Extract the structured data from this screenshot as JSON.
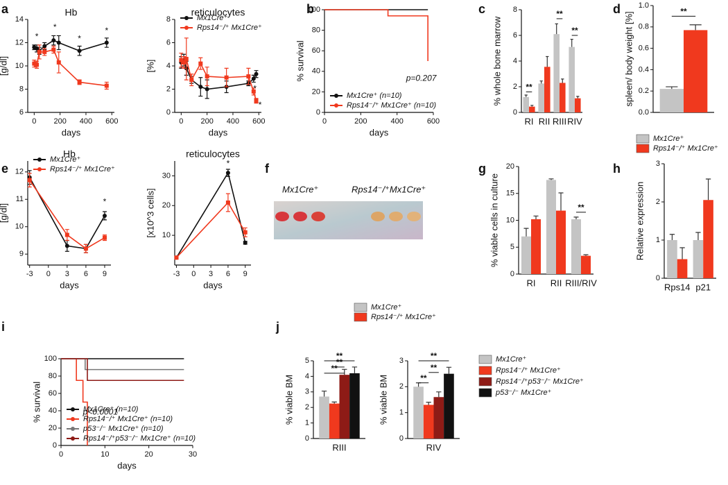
{
  "chart_data": [
    {
      "type": "line",
      "panel": "a",
      "title": "Hb",
      "xlabel": "days",
      "ylabel": "[g/dl]",
      "markers": true,
      "x": [
        0,
        20,
        40,
        80,
        150,
        190,
        350,
        560
      ],
      "series": [
        {
          "color": "#111111",
          "values": [
            11.6,
            11.5,
            11.3,
            11.7,
            12.2,
            12.0,
            11.3,
            12.0
          ],
          "errors": [
            0.2,
            0.3,
            0.3,
            0.3,
            0.4,
            0.6,
            0.4,
            0.4
          ]
        },
        {
          "color": "#f0391e",
          "values": [
            10.2,
            10.1,
            11.2,
            11.2,
            11.4,
            10.3,
            8.6,
            8.3
          ],
          "errors": [
            0.3,
            0.3,
            0.6,
            0.3,
            0.3,
            0.9,
            0.2,
            0.3
          ]
        }
      ],
      "xlim": [
        -50,
        620
      ],
      "xticks": [
        0,
        200,
        400,
        600
      ],
      "ylim": [
        6,
        14
      ],
      "yticks": [
        6,
        8,
        10,
        12,
        14
      ],
      "annotations": [
        {
          "text": "*",
          "x": 20,
          "y": 12.5
        },
        {
          "text": "*",
          "x": 160,
          "y": 13.3
        },
        {
          "text": "*",
          "x": 350,
          "y": 12.3
        },
        {
          "text": "*",
          "x": 560,
          "y": 13.0
        }
      ]
    },
    {
      "type": "line",
      "title": "reticulocytes",
      "xlabel": "days",
      "ylabel": "[%]",
      "markers": true,
      "legend": "top",
      "x": [
        0,
        20,
        40,
        80,
        150,
        200,
        350,
        520,
        560,
        580
      ],
      "series": [
        {
          "name": "Mx1Cre⁺",
          "color": "#111111",
          "values": [
            4.3,
            4.5,
            3.8,
            2.8,
            2.2,
            2.0,
            2.2,
            2.5,
            2.9,
            3.3
          ],
          "errors": [
            0.5,
            0.5,
            0.6,
            0.3,
            0.8,
            0.8,
            0.5,
            0.2,
            0.3,
            0.3
          ]
        },
        {
          "name": "Rps14⁻/⁺ Mx1Cre⁺",
          "color": "#f0391e",
          "values": [
            4.5,
            4.3,
            4.6,
            2.8,
            4.2,
            3.1,
            3.0,
            3.1,
            1.8,
            1.0
          ],
          "errors": [
            0.6,
            0.5,
            1.8,
            0.5,
            0.5,
            0.8,
            0.8,
            0.7,
            0.3,
            0.2
          ]
        }
      ],
      "xlim": [
        -50,
        620
      ],
      "xticks": [
        0,
        200,
        400,
        600
      ],
      "ylim": [
        0,
        8
      ],
      "yticks": [
        0,
        2,
        4,
        6,
        8
      ],
      "annotations": [
        {
          "text": "*",
          "x": 570,
          "y": 2.0
        },
        {
          "text": "*",
          "x": 610,
          "y": 0.6
        }
      ]
    },
    {
      "type": "line",
      "panel": "b",
      "xlabel": "days",
      "ylabel": "% survival",
      "legend": "lower-left",
      "series": [
        {
          "name": "Mx1Cre⁺ (n=10)",
          "color": "#111111",
          "x": [
            0,
            570
          ],
          "values": [
            100,
            100
          ]
        },
        {
          "name": "Rps14⁻/⁺ Mx1Cre⁺ (n=10)",
          "color": "#f0391e",
          "x": [
            0,
            350,
            350,
            570,
            570
          ],
          "values": [
            100,
            100,
            94,
            94,
            50
          ]
        }
      ],
      "xlim": [
        0,
        600
      ],
      "xticks": [
        0,
        200,
        400,
        600
      ],
      "ylim": [
        0,
        100
      ],
      "yticks": [
        0,
        20,
        40,
        60,
        80,
        100
      ],
      "annotations": [
        {
          "text": "p=0.207",
          "x": 450,
          "y": 33
        }
      ]
    },
    {
      "type": "bar",
      "panel": "c",
      "ylabel": "% whole bone marrow",
      "categories": [
        "RI",
        "RII",
        "RIII",
        "RIV"
      ],
      "series": [
        {
          "color": "#c4c4c4",
          "values": [
            1.2,
            2.25,
            6.1,
            5.1
          ],
          "errors": [
            0.15,
            0.2,
            0.8,
            0.6
          ]
        },
        {
          "color": "#f0391e",
          "values": [
            0.45,
            3.55,
            2.3,
            1.1
          ],
          "errors": [
            0.1,
            0.8,
            0.3,
            0.15
          ]
        }
      ],
      "ylim": [
        0,
        8
      ],
      "yticks": [
        0,
        2,
        4,
        6,
        8
      ],
      "annotations": [
        {
          "text": "**",
          "category": 0,
          "series": [
            0,
            1
          ],
          "y": 1.6
        },
        {
          "text": "**",
          "category": 2,
          "series": [
            0,
            1
          ],
          "y": 7.3
        },
        {
          "text": "**",
          "category": 3,
          "series": [
            0,
            1
          ],
          "y": 6.0
        }
      ]
    },
    {
      "type": "bar",
      "panel": "d",
      "ylabel": "spleen/ body weight [%]",
      "legend": "below",
      "categories": [
        null
      ],
      "series": [
        {
          "name": "Mx1Cre⁺",
          "color": "#c4c4c4",
          "values": [
            0.22
          ],
          "errors": [
            0.02
          ]
        },
        {
          "name": "Rps14⁻/⁺ Mx1Cre⁺",
          "color": "#f0391e",
          "values": [
            0.77
          ],
          "errors": [
            0.05
          ]
        }
      ],
      "ylim": [
        0,
        1
      ],
      "yticks": [
        {
          "value": 0,
          "label": "0.0"
        },
        0.2,
        0.4,
        0.6,
        0.8,
        {
          "value": 1,
          "label": "1.0"
        }
      ],
      "annotations": [
        {
          "text": "**",
          "category": 0,
          "series": [
            0,
            1
          ],
          "y": 0.9
        }
      ]
    },
    {
      "type": "line",
      "panel": "e",
      "title": "Hb",
      "xlabel": "days",
      "ylabel": "[g/dl]",
      "markers": true,
      "legend": "top",
      "x": [
        -3,
        3,
        6,
        9
      ],
      "series": [
        {
          "name": "Mx1Cre⁺",
          "color": "#111111",
          "values": [
            11.8,
            9.3,
            9.2,
            10.4
          ],
          "errors": [
            0.25,
            0.2,
            0.15,
            0.15
          ]
        },
        {
          "name": "Rps14⁻/⁺ Mx1Cre⁺",
          "color": "#f0391e",
          "values": [
            11.7,
            9.7,
            9.2,
            9.6
          ],
          "errors": [
            0.25,
            0.2,
            0.15,
            0.1
          ]
        }
      ],
      "xlim": [
        -3.3,
        10
      ],
      "xticks": [
        -3,
        0,
        3,
        6,
        9
      ],
      "ylim": [
        8.6,
        12.4
      ],
      "yticks": [
        9,
        10,
        11,
        12
      ],
      "annotations": [
        {
          "text": "*",
          "x": 9,
          "y": 10.9
        }
      ]
    },
    {
      "type": "line",
      "title": "reticulocytes",
      "xlabel": "days",
      "ylabel": "[x10^3 cells]",
      "markers": true,
      "x": [
        -3,
        6,
        9
      ],
      "series": [
        {
          "color": "#111111",
          "values": [
            2.5,
            31,
            7.5
          ],
          "errors": [
            0.5,
            1.2,
            0.5
          ]
        },
        {
          "color": "#f0391e",
          "values": [
            2.5,
            21,
            11
          ],
          "errors": [
            0.5,
            3,
            1.5
          ]
        }
      ],
      "xlim": [
        -3.3,
        10
      ],
      "xticks": [
        -3,
        0,
        3,
        6,
        9
      ],
      "ylim": [
        0,
        35
      ],
      "yticks": [
        10,
        20,
        30
      ],
      "annotations": [
        {
          "text": "*",
          "x": 6,
          "y": 34
        }
      ]
    },
    {
      "type": "image",
      "panel": "f",
      "labels": [
        "Mx1Cre⁺",
        "Rps14⁻/⁺Mx1Cre⁺"
      ],
      "legend": "below",
      "series": [
        {
          "name": "Mx1Cre⁺",
          "color": "#c4c4c4"
        },
        {
          "name": "Rps14⁻/⁺ Mx1Cre⁺",
          "color": "#f0391e"
        }
      ]
    },
    {
      "type": "bar",
      "panel": "g",
      "ylabel": "% viable cells in culture",
      "categories": [
        "RI",
        "RII",
        "RIII/RIV"
      ],
      "series": [
        {
          "color": "#c4c4c4",
          "values": [
            7,
            17.5,
            10.2
          ],
          "errors": [
            1.5,
            0.2,
            0.4
          ]
        },
        {
          "color": "#f0391e",
          "values": [
            10.2,
            11.8,
            3.4
          ],
          "errors": [
            0.6,
            3.3,
            0.2
          ]
        }
      ],
      "ylim": [
        0,
        20
      ],
      "yticks": [
        0,
        5,
        10,
        15,
        20
      ],
      "annotations": [
        {
          "text": "**",
          "category": 2,
          "series": [
            0,
            1
          ],
          "y": 11.5
        }
      ]
    },
    {
      "type": "bar",
      "panel": "h",
      "ylabel": "Relative expression",
      "categories": [
        "Rps14",
        "p21"
      ],
      "series": [
        {
          "color": "#c4c4c4",
          "values": [
            1.0,
            1.0
          ],
          "errors": [
            0.15,
            0.2
          ]
        },
        {
          "color": "#f0391e",
          "values": [
            0.5,
            2.05
          ],
          "errors": [
            0.3,
            0.55
          ]
        }
      ],
      "ylim": [
        0,
        3
      ],
      "yticks": [
        0,
        1,
        2,
        3
      ]
    },
    {
      "type": "line",
      "panel": "i",
      "xlabel": "days",
      "ylabel": "% survival",
      "legend": "lower-left",
      "series": [
        {
          "name": "Mx1Cre⁺ (n=10)",
          "color": "#111111",
          "x": [
            0,
            28
          ],
          "values": [
            100,
            100
          ]
        },
        {
          "name": "Rps14⁻/⁺ Mx1Cre⁺ (n=10)",
          "color": "#f0391e",
          "x": [
            0,
            3.5,
            3.5,
            5,
            5,
            6,
            6
          ],
          "values": [
            100,
            100,
            75,
            75,
            50,
            50,
            0
          ]
        },
        {
          "name": "p53⁻/⁻ Mx1Cre⁺ (n=10)",
          "color": "#777777",
          "x": [
            0,
            5.5,
            5.5,
            28
          ],
          "values": [
            100,
            100,
            87.5,
            87.5
          ]
        },
        {
          "name": "Rps14⁻/⁺p53⁻/⁻ Mx1Cre⁺ (n=10)",
          "color": "#8e1b16",
          "x": [
            0,
            6,
            6,
            28
          ],
          "values": [
            100,
            100,
            75,
            75
          ]
        }
      ],
      "xlim": [
        0,
        30
      ],
      "xticks": [
        0,
        10,
        20,
        30
      ],
      "ylim": [
        0,
        100
      ],
      "yticks": [
        0,
        20,
        40,
        60,
        80,
        100
      ],
      "annotations": [
        {
          "text": "p<0.0001",
          "x": 5,
          "y": 38
        }
      ]
    },
    {
      "type": "bar",
      "panel": "j",
      "ylabel": "% viable BM",
      "categories": [
        "RIII"
      ],
      "series": [
        {
          "color": "#c4c4c4",
          "values": [
            2.7
          ],
          "errors": [
            0.35
          ]
        },
        {
          "color": "#f0391e",
          "values": [
            2.25
          ],
          "errors": [
            0.1
          ]
        },
        {
          "color": "#8e1b16",
          "values": [
            4.1
          ],
          "errors": [
            0.35
          ]
        },
        {
          "color": "#111111",
          "values": [
            4.2
          ],
          "errors": [
            0.4
          ]
        }
      ],
      "ylim": [
        0,
        5
      ],
      "yticks": [
        0,
        1,
        2,
        3,
        4,
        5
      ],
      "annotations": [
        {
          "text": "**",
          "category": 0,
          "series": [
            0,
            3
          ],
          "y": 5.0
        },
        {
          "text": "**",
          "category": 0,
          "series": [
            1,
            2
          ],
          "y": 4.6
        },
        {
          "text": "**",
          "category": 0,
          "series": [
            0,
            2
          ],
          "y": 4.2
        }
      ]
    },
    {
      "type": "bar",
      "ylabel": "% viable BM",
      "legend": "right",
      "categories": [
        "RIV"
      ],
      "series": [
        {
          "name": "Mx1Cre⁺",
          "color": "#c4c4c4",
          "values": [
            2.0
          ],
          "errors": [
            0.15
          ]
        },
        {
          "name": "Rps14⁻/⁺ Mx1Cre⁺",
          "color": "#f0391e",
          "values": [
            1.3
          ],
          "errors": [
            0.1
          ]
        },
        {
          "name": "Rps14⁻/⁺p53⁻/⁻ Mx1Cre⁺",
          "color": "#8e1b16",
          "values": [
            1.6
          ],
          "errors": [
            0.2
          ]
        },
        {
          "name": "p53⁻/⁻ Mx1Cre⁺",
          "color": "#111111",
          "values": [
            2.5
          ],
          "errors": [
            0.25
          ]
        }
      ],
      "ylim": [
        0,
        3
      ],
      "yticks": [
        0,
        1,
        2,
        3
      ],
      "annotations": [
        {
          "text": "**",
          "category": 0,
          "series": [
            0,
            3
          ],
          "y": 3.0
        },
        {
          "text": "**",
          "category": 0,
          "series": [
            1,
            2
          ],
          "y": 2.55
        },
        {
          "text": "**",
          "category": 0,
          "series": [
            0,
            1
          ],
          "y": 2.15
        }
      ]
    }
  ]
}
